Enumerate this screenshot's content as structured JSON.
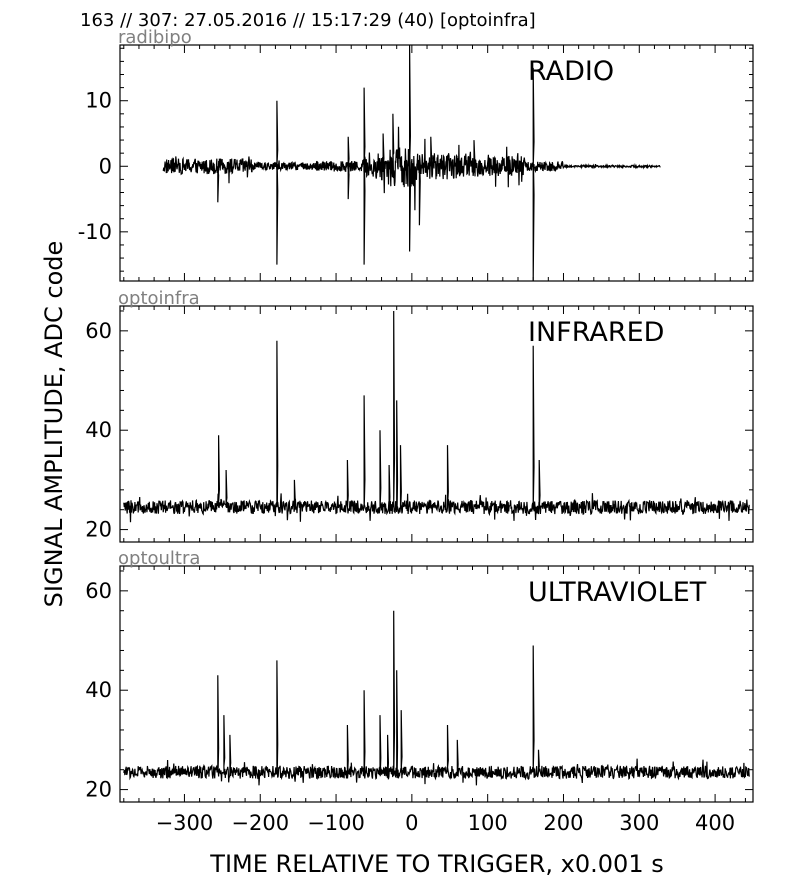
{
  "header": "163 // 307:   27.05.2016 // 15:17:29 (40)  [optoinfra]",
  "ylabel": "SIGNAL AMPLITUDE,  ADC code",
  "xlabel": "TIME RELATIVE TO TRIGGER,   x0.001 s",
  "chart_data": [
    {
      "type": "line",
      "name": "RADIO",
      "subtitle": "radibipo",
      "xlim": [
        -385,
        450
      ],
      "ylim": [
        -17.5,
        18.5
      ],
      "yticks": [
        10,
        0,
        -10
      ],
      "yticklabels": [
        "10",
        "0",
        "-10"
      ],
      "xticks": [
        -300,
        -200,
        -100,
        0,
        100,
        200,
        300,
        400
      ],
      "signal": {
        "x_range": [
          -328,
          328
        ],
        "baseline": 0,
        "noise_segments": [
          [
            -328,
            -210,
            1.2
          ],
          [
            -210,
            -130,
            0.6
          ],
          [
            -130,
            -65,
            0.8
          ],
          [
            -65,
            -50,
            1.6
          ],
          [
            -50,
            -30,
            2.2
          ],
          [
            -30,
            5,
            3.2
          ],
          [
            5,
            60,
            2.0
          ],
          [
            60,
            150,
            1.6
          ],
          [
            150,
            200,
            0.8
          ],
          [
            200,
            328,
            0.15
          ]
        ],
        "spikes": [
          [
            -256,
            -5.5
          ],
          [
            -178,
            10
          ],
          [
            -178,
            -15
          ],
          [
            -84,
            4.5
          ],
          [
            -84,
            -5
          ],
          [
            -63,
            12
          ],
          [
            -63,
            -15
          ],
          [
            -38,
            5
          ],
          [
            -25,
            8
          ],
          [
            -3,
            18.5
          ],
          [
            -3,
            -13
          ],
          [
            10,
            -9
          ],
          [
            25,
            4.5
          ],
          [
            82,
            4
          ],
          [
            160,
            15
          ],
          [
            160,
            -17.5
          ]
        ]
      }
    },
    {
      "type": "line",
      "name": "INFRARED",
      "subtitle": "optoinfra",
      "xlim": [
        -385,
        450
      ],
      "ylim": [
        17.5,
        65
      ],
      "yticks": [
        60,
        40,
        20
      ],
      "yticklabels": [
        "60",
        "40",
        "20"
      ],
      "xticks": [
        -300,
        -200,
        -100,
        0,
        100,
        200,
        300,
        400
      ],
      "signal": {
        "x_range": [
          -380,
          445
        ],
        "baseline": 24.5,
        "noise_segments": [
          [
            -380,
            445,
            1.4
          ]
        ],
        "spikes": [
          [
            -255,
            39
          ],
          [
            -245,
            32
          ],
          [
            -178,
            58
          ],
          [
            -155,
            30
          ],
          [
            -85,
            34
          ],
          [
            -63,
            47
          ],
          [
            -42,
            40
          ],
          [
            -30,
            33
          ],
          [
            -24,
            64
          ],
          [
            -20,
            46
          ],
          [
            -15,
            37
          ],
          [
            47,
            37
          ],
          [
            160,
            57
          ],
          [
            168,
            34
          ]
        ]
      }
    },
    {
      "type": "line",
      "name": "ULTRAVIOLET",
      "subtitle": "optoultra",
      "xlim": [
        -385,
        450
      ],
      "ylim": [
        17.5,
        65
      ],
      "yticks": [
        60,
        40,
        20
      ],
      "yticklabels": [
        "60",
        "40",
        "20"
      ],
      "xticks": [
        -300,
        -200,
        -100,
        0,
        100,
        200,
        300,
        400
      ],
      "signal": {
        "x_range": [
          -380,
          445
        ],
        "baseline": 23.5,
        "noise_segments": [
          [
            -380,
            445,
            1.3
          ]
        ],
        "spikes": [
          [
            -256,
            43
          ],
          [
            -248,
            35
          ],
          [
            -240,
            31
          ],
          [
            -178,
            46
          ],
          [
            -85,
            33
          ],
          [
            -63,
            40
          ],
          [
            -42,
            35
          ],
          [
            -32,
            31
          ],
          [
            -24,
            56
          ],
          [
            -20,
            44
          ],
          [
            -14,
            36
          ],
          [
            47,
            33
          ],
          [
            60,
            30
          ],
          [
            160,
            49
          ],
          [
            167,
            28
          ]
        ]
      }
    }
  ]
}
